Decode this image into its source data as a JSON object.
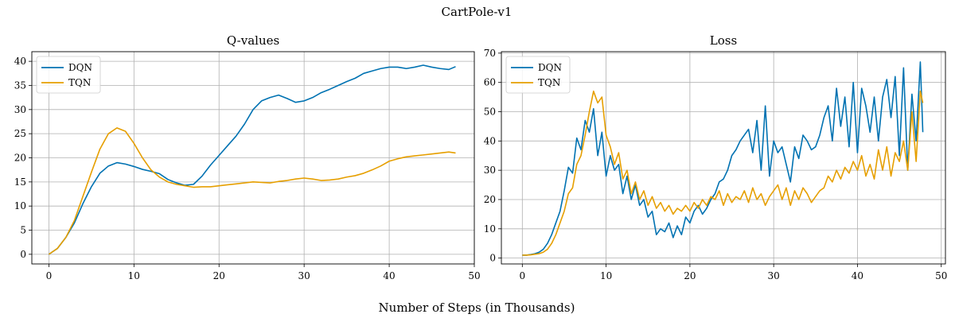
{
  "figure": {
    "title": "CartPole-v1",
    "xlabel": "Number of Steps (in Thousands)"
  },
  "colors": {
    "DQN": "#0072B2",
    "TQN": "#E69F00",
    "grid": "#b0b0b0",
    "axis": "#000000"
  },
  "chart_data": [
    {
      "type": "line",
      "title": "Q-values",
      "xlabel": "",
      "ylabel": "",
      "xlim": [
        -2,
        50
      ],
      "ylim": [
        -2,
        42
      ],
      "xticks": [
        0,
        10,
        20,
        30,
        40,
        50
      ],
      "yticks": [
        0,
        5,
        10,
        15,
        20,
        25,
        30,
        35,
        40
      ],
      "grid": true,
      "legend": "top-left",
      "series": [
        {
          "name": "DQN",
          "x": [
            0,
            1,
            2,
            3,
            4,
            5,
            6,
            7,
            8,
            9,
            10,
            11,
            12,
            13,
            14,
            15,
            16,
            17,
            18,
            19,
            20,
            21,
            22,
            23,
            24,
            25,
            26,
            27,
            28,
            29,
            30,
            31,
            32,
            33,
            34,
            35,
            36,
            37,
            38,
            39,
            40,
            41,
            42,
            43,
            44,
            45,
            46,
            47,
            47.8
          ],
          "y": [
            0,
            1.2,
            3.5,
            6.5,
            10.5,
            14,
            16.8,
            18.3,
            19,
            18.7,
            18.2,
            17.6,
            17.2,
            16.7,
            15.5,
            14.8,
            14.3,
            14.5,
            16.2,
            18.5,
            20.5,
            22.5,
            24.5,
            27,
            30,
            31.8,
            32.5,
            33,
            32.3,
            31.5,
            31.8,
            32.5,
            33.5,
            34.2,
            35,
            35.8,
            36.5,
            37.5,
            38,
            38.5,
            38.8,
            38.8,
            38.5,
            38.8,
            39.2,
            38.8,
            38.5,
            38.3,
            38.9
          ]
        },
        {
          "name": "TQN",
          "x": [
            0,
            1,
            2,
            3,
            4,
            5,
            6,
            7,
            8,
            9,
            10,
            11,
            12,
            13,
            14,
            15,
            16,
            17,
            18,
            19,
            20,
            21,
            22,
            23,
            24,
            25,
            26,
            27,
            28,
            29,
            30,
            31,
            32,
            33,
            34,
            35,
            36,
            37,
            38,
            39,
            40,
            41,
            42,
            43,
            44,
            45,
            46,
            47,
            47.8
          ],
          "y": [
            0,
            1.2,
            3.5,
            7,
            12,
            17,
            21.8,
            25,
            26.2,
            25.5,
            23,
            20,
            17.5,
            16,
            15,
            14.5,
            14.2,
            13.9,
            14,
            14,
            14.2,
            14.4,
            14.6,
            14.8,
            15,
            14.9,
            14.8,
            15.1,
            15.3,
            15.6,
            15.8,
            15.6,
            15.3,
            15.4,
            15.6,
            16,
            16.3,
            16.8,
            17.5,
            18.3,
            19.3,
            19.8,
            20.2,
            20.4,
            20.6,
            20.8,
            21,
            21.2,
            21
          ]
        }
      ]
    },
    {
      "type": "line",
      "title": "Loss",
      "xlabel": "",
      "ylabel": "",
      "xlim": [
        -2.5,
        50.5
      ],
      "ylim": [
        -2,
        70.5
      ],
      "xticks": [
        0,
        10,
        20,
        30,
        40,
        50
      ],
      "yticks": [
        0,
        10,
        20,
        30,
        40,
        50,
        60,
        70
      ],
      "grid": true,
      "legend": "top-left",
      "series": [
        {
          "name": "DQN",
          "x": [
            0,
            0.5,
            1,
            1.5,
            2,
            2.5,
            3,
            3.5,
            4,
            4.5,
            5,
            5.5,
            6,
            6.5,
            7,
            7.5,
            8,
            8.5,
            9,
            9.5,
            10,
            10.5,
            11,
            11.5,
            12,
            12.5,
            13,
            13.5,
            14,
            14.5,
            15,
            15.5,
            16,
            16.5,
            17,
            17.5,
            18,
            18.5,
            19,
            19.5,
            20,
            20.5,
            21,
            21.5,
            22,
            22.5,
            23,
            23.5,
            24,
            24.5,
            25,
            25.5,
            26,
            26.5,
            27,
            27.5,
            28,
            28.5,
            29,
            29.5,
            30,
            30.5,
            31,
            31.5,
            32,
            32.5,
            33,
            33.5,
            34,
            34.5,
            35,
            35.5,
            36,
            36.5,
            37,
            37.5,
            38,
            38.5,
            39,
            39.5,
            40,
            40.5,
            41,
            41.5,
            42,
            42.5,
            43,
            43.5,
            44,
            44.5,
            45,
            45.5,
            46,
            46.5,
            47,
            47.5,
            47.8
          ],
          "y": [
            1,
            1,
            1.2,
            1.5,
            2,
            3,
            5,
            8,
            12,
            16,
            23,
            31,
            29,
            41,
            37,
            47,
            43,
            51,
            35,
            43,
            28,
            35,
            30,
            32,
            22,
            28,
            20,
            25,
            18,
            20,
            14,
            16,
            8,
            10,
            9,
            12,
            7,
            11,
            8,
            14,
            12,
            16,
            18,
            15,
            17,
            20,
            22,
            26,
            27,
            30,
            35,
            37,
            40,
            42,
            44,
            36,
            47,
            30,
            52,
            28,
            40,
            36,
            38,
            32,
            26,
            38,
            34,
            42,
            40,
            37,
            38,
            42,
            48,
            52,
            40,
            58,
            45,
            55,
            38,
            60,
            36,
            58,
            52,
            43,
            55,
            40,
            55,
            61,
            48,
            62,
            35,
            65,
            30,
            56,
            40,
            67,
            43
          ]
        },
        {
          "name": "TQN",
          "x": [
            0,
            0.5,
            1,
            1.5,
            2,
            2.5,
            3,
            3.5,
            4,
            4.5,
            5,
            5.5,
            6,
            6.5,
            7,
            7.5,
            8,
            8.5,
            9,
            9.5,
            10,
            10.5,
            11,
            11.5,
            12,
            12.5,
            13,
            13.5,
            14,
            14.5,
            15,
            15.5,
            16,
            16.5,
            17,
            17.5,
            18,
            18.5,
            19,
            19.5,
            20,
            20.5,
            21,
            21.5,
            22,
            22.5,
            23,
            23.5,
            24,
            24.5,
            25,
            25.5,
            26,
            26.5,
            27,
            27.5,
            28,
            28.5,
            29,
            29.5,
            30,
            30.5,
            31,
            31.5,
            32,
            32.5,
            33,
            33.5,
            34,
            34.5,
            35,
            35.5,
            36,
            36.5,
            37,
            37.5,
            38,
            38.5,
            39,
            39.5,
            40,
            40.5,
            41,
            41.5,
            42,
            42.5,
            43,
            43.5,
            44,
            44.5,
            45,
            45.5,
            46,
            46.5,
            47,
            47.5,
            47.8
          ],
          "y": [
            1,
            1,
            1.1,
            1.3,
            1.5,
            2,
            3,
            5,
            8,
            12,
            16,
            22,
            24,
            32,
            35,
            42,
            50,
            57,
            53,
            55,
            42,
            38,
            32,
            36,
            27,
            30,
            22,
            26,
            20,
            23,
            18,
            21,
            17,
            19,
            16,
            18,
            15,
            17,
            16,
            18,
            16,
            19,
            17,
            20,
            18,
            21,
            20,
            23,
            18,
            22,
            19,
            21,
            20,
            23,
            19,
            24,
            20,
            22,
            18,
            21,
            23,
            25,
            20,
            24,
            18,
            23,
            20,
            24,
            22,
            19,
            21,
            23,
            24,
            28,
            26,
            30,
            27,
            31,
            29,
            33,
            30,
            35,
            28,
            32,
            27,
            37,
            30,
            38,
            28,
            36,
            33,
            40,
            30,
            50,
            33,
            57,
            53
          ]
        }
      ]
    }
  ]
}
